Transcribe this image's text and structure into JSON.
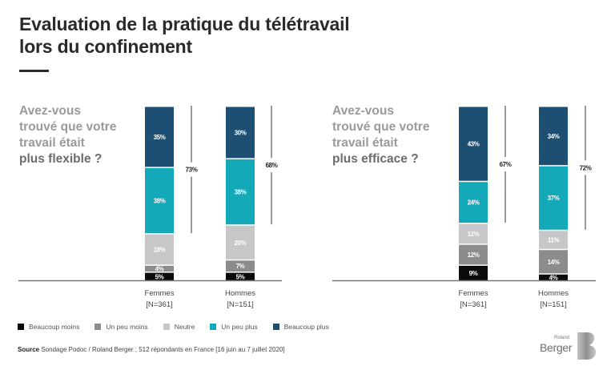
{
  "header": {
    "title_line1": "Evaluation de la pratique du télétravail",
    "title_line2": "lors du confinement"
  },
  "colors": {
    "beaucoup_moins": "#0b0b0b",
    "un_peu_moins": "#8a8c8e",
    "neutre": "#c5c7c9",
    "un_peu_plus": "#14a9b8",
    "beaucoup_plus": "#1d4f72"
  },
  "panels": [
    {
      "question_line1": "Avez-vous",
      "question_line2": "trouvé que votre",
      "question_line3": "travail était",
      "question_strong": "plus flexible ?"
    },
    {
      "question_line1": "Avez-vous",
      "question_line2": "trouvé que votre",
      "question_line3": "travail était",
      "question_strong": "plus efficace ?"
    }
  ],
  "legend": [
    {
      "label": "Beaucoup moins",
      "color": "#0b0b0b"
    },
    {
      "label": "Un peu moins",
      "color": "#8a8c8e"
    },
    {
      "label": "Neutre",
      "color": "#c5c7c9"
    },
    {
      "label": "Un peu plus",
      "color": "#14a9b8"
    },
    {
      "label": "Beaucoup plus",
      "color": "#1d4f72"
    }
  ],
  "source": {
    "label": "Source",
    "text": "Sondage Podoc / Roland Berger ; 512 répondants en France [16 juin au 7 juillet 2020]"
  },
  "logo": {
    "small": "Roland",
    "name": "Berger"
  },
  "chart_data": [
    {
      "type": "bar",
      "stacked": true,
      "title": "Avez-vous trouvé que votre travail était plus flexible ?",
      "categories": [
        "Femmes",
        "Hommes"
      ],
      "category_sublabels": [
        "[N=361]",
        "[N=151]"
      ],
      "series": [
        {
          "name": "Beaucoup moins",
          "values": [
            5,
            5
          ]
        },
        {
          "name": "Un peu moins",
          "values": [
            4,
            7
          ]
        },
        {
          "name": "Neutre",
          "values": [
            18,
            20
          ]
        },
        {
          "name": "Un peu plus",
          "values": [
            38,
            38
          ]
        },
        {
          "name": "Beaucoup plus",
          "values": [
            35,
            30
          ]
        }
      ],
      "bracket_totals": [
        "73%",
        "68%"
      ],
      "ylim": [
        0,
        100
      ],
      "legend": "bottom"
    },
    {
      "type": "bar",
      "stacked": true,
      "title": "Avez-vous trouvé que votre travail était plus efficace ?",
      "categories": [
        "Femmes",
        "Hommes"
      ],
      "category_sublabels": [
        "[N=361]",
        "[N=151]"
      ],
      "series": [
        {
          "name": "Beaucoup moins",
          "values": [
            9,
            4
          ]
        },
        {
          "name": "Un peu moins",
          "values": [
            12,
            14
          ]
        },
        {
          "name": "Neutre",
          "values": [
            12,
            11
          ]
        },
        {
          "name": "Un peu plus",
          "values": [
            24,
            37
          ]
        },
        {
          "name": "Beaucoup plus",
          "values": [
            43,
            34
          ]
        }
      ],
      "bracket_totals": [
        "67%",
        "72%"
      ],
      "ylim": [
        0,
        100
      ],
      "legend": "bottom"
    }
  ]
}
